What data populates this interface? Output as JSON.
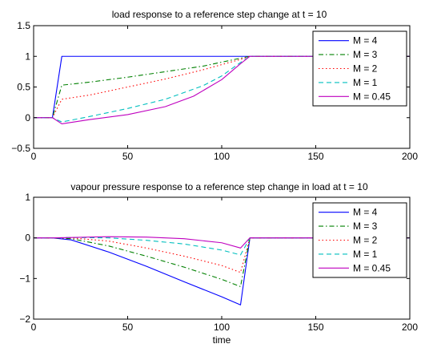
{
  "chart_data": [
    {
      "type": "line",
      "title": "load response to a reference step change at t = 10",
      "xlabel": "",
      "ylabel": "",
      "xlim": [
        0,
        200
      ],
      "ylim": [
        -0.5,
        1.5
      ],
      "xticks": [
        0,
        50,
        100,
        150,
        200
      ],
      "yticks": [
        -0.5,
        0,
        0.5,
        1,
        1.5
      ],
      "xtick_labels": [
        "0",
        "50",
        "100",
        "150",
        "200"
      ],
      "ytick_labels": [
        "−0.5",
        "0",
        "0.5",
        "1",
        "1.5"
      ],
      "legend_position": "top-right",
      "series": [
        {
          "name": "M = 4",
          "color": "#0000ff",
          "dash": "solid",
          "x": [
            0,
            10,
            15,
            115,
            200
          ],
          "y": [
            0,
            0,
            1,
            1,
            1
          ]
        },
        {
          "name": "M = 3",
          "color": "#008000",
          "dash": "dashdot",
          "x": [
            0,
            10,
            15,
            30,
            50,
            70,
            90,
            110,
            115,
            200
          ],
          "y": [
            0,
            0,
            0.53,
            0.58,
            0.66,
            0.75,
            0.84,
            0.97,
            1,
            1
          ]
        },
        {
          "name": "M = 2",
          "color": "#ff0000",
          "dash": "dotted",
          "x": [
            0,
            10,
            15,
            30,
            50,
            70,
            90,
            110,
            115,
            200
          ],
          "y": [
            0,
            0,
            0.3,
            0.37,
            0.5,
            0.63,
            0.78,
            0.95,
            1,
            1
          ]
        },
        {
          "name": "M = 1",
          "color": "#00bfbf",
          "dash": "dashed",
          "x": [
            0,
            10,
            15,
            30,
            50,
            70,
            90,
            100,
            110,
            115,
            200
          ],
          "y": [
            0,
            0,
            -0.07,
            0.02,
            0.15,
            0.3,
            0.52,
            0.68,
            0.9,
            1,
            1
          ]
        },
        {
          "name": "M = 0.45",
          "color": "#bf00bf",
          "dash": "solid",
          "x": [
            0,
            10,
            15,
            30,
            50,
            70,
            85,
            100,
            110,
            115,
            200
          ],
          "y": [
            0,
            0,
            -0.1,
            -0.03,
            0.05,
            0.18,
            0.35,
            0.62,
            0.88,
            1,
            1
          ]
        }
      ]
    },
    {
      "type": "line",
      "title": "vapour pressure response to a reference step change in load at t = 10",
      "xlabel": "time",
      "ylabel": "",
      "xlim": [
        0,
        200
      ],
      "ylim": [
        -2,
        1
      ],
      "xticks": [
        0,
        50,
        100,
        150,
        200
      ],
      "yticks": [
        -2,
        -1,
        0,
        1
      ],
      "xtick_labels": [
        "0",
        "50",
        "100",
        "150",
        "200"
      ],
      "ytick_labels": [
        "−2",
        "−1",
        "0",
        "1"
      ],
      "legend_position": "top-right",
      "series": [
        {
          "name": "M = 4",
          "color": "#0000ff",
          "dash": "solid",
          "x": [
            0,
            10,
            20,
            40,
            60,
            80,
            100,
            110,
            115,
            200
          ],
          "y": [
            0,
            0,
            -0.05,
            -0.35,
            -0.7,
            -1.08,
            -1.45,
            -1.65,
            0,
            0
          ]
        },
        {
          "name": "M = 3",
          "color": "#008000",
          "dash": "dashdot",
          "x": [
            0,
            10,
            20,
            40,
            60,
            80,
            100,
            110,
            115,
            200
          ],
          "y": [
            0,
            0,
            -0.02,
            -0.2,
            -0.45,
            -0.72,
            -1.02,
            -1.2,
            0,
            0
          ]
        },
        {
          "name": "M = 2",
          "color": "#ff0000",
          "dash": "dotted",
          "x": [
            0,
            10,
            20,
            40,
            60,
            80,
            100,
            110,
            115,
            200
          ],
          "y": [
            0,
            0,
            0,
            -0.08,
            -0.25,
            -0.45,
            -0.68,
            -0.85,
            0,
            0
          ]
        },
        {
          "name": "M = 1",
          "color": "#00bfbf",
          "dash": "dashed",
          "x": [
            0,
            10,
            20,
            40,
            60,
            80,
            100,
            110,
            115,
            200
          ],
          "y": [
            0,
            0,
            0.01,
            0,
            -0.06,
            -0.15,
            -0.3,
            -0.42,
            0,
            0
          ]
        },
        {
          "name": "M = 0.45",
          "color": "#bf00bf",
          "dash": "solid",
          "x": [
            0,
            10,
            20,
            40,
            60,
            80,
            100,
            110,
            115,
            200
          ],
          "y": [
            0,
            0,
            0.01,
            0.03,
            0.02,
            -0.02,
            -0.12,
            -0.25,
            0,
            0
          ]
        }
      ]
    }
  ]
}
